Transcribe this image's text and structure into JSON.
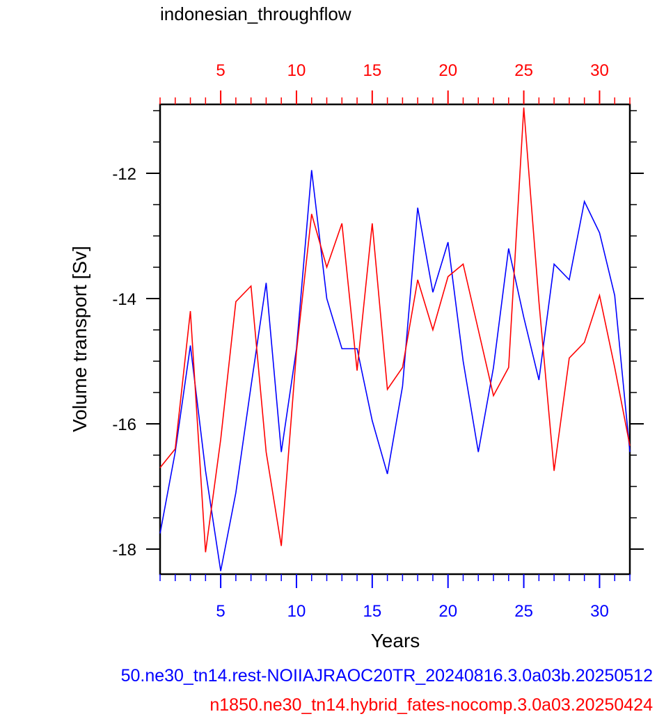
{
  "chart_data": {
    "type": "line",
    "title": "indonesian_throughflow",
    "xlabel": "Years",
    "ylabel": "Volume transport [Sv]",
    "xlim": [
      1,
      32
    ],
    "ylim": [
      -18.4,
      -10.9
    ],
    "x_ticks": [
      5,
      10,
      15,
      20,
      25,
      30
    ],
    "y_ticks": [
      -18,
      -16,
      -14,
      -12
    ],
    "top_axis_color": "#ff0000",
    "bottom_axis_color": "#0000ff",
    "grid": false,
    "x": [
      1,
      2,
      3,
      4,
      5,
      6,
      7,
      8,
      9,
      10,
      11,
      12,
      13,
      14,
      15,
      16,
      17,
      18,
      19,
      20,
      21,
      22,
      23,
      24,
      25,
      26,
      27,
      28,
      29,
      30,
      31,
      32
    ],
    "series": [
      {
        "name": "50.ne30_tn14.rest-NOIIAJRAOC20TR_20240816.3.0a03b.20250512",
        "color": "#0000ff",
        "values": [
          -17.75,
          -16.45,
          -14.75,
          -16.75,
          -18.35,
          -17.1,
          -15.4,
          -13.75,
          -16.45,
          -14.8,
          -11.95,
          -14.0,
          -14.8,
          -14.8,
          -15.95,
          -16.8,
          -15.4,
          -12.55,
          -13.9,
          -13.1,
          -15.0,
          -16.45,
          -15.1,
          -13.2,
          -14.3,
          -15.3,
          -13.45,
          -13.7,
          -12.45,
          -12.95,
          -13.95,
          -16.45
        ]
      },
      {
        "name": "n1850.ne30_tn14.hybrid_fates-nocomp.3.0a03.20250424",
        "color": "#ff0000",
        "values": [
          -16.7,
          -16.4,
          -14.2,
          -18.05,
          -16.25,
          -14.05,
          -13.8,
          -16.45,
          -17.95,
          -14.85,
          -12.65,
          -13.5,
          -12.8,
          -15.15,
          -12.8,
          -15.45,
          -15.1,
          -13.7,
          -14.5,
          -13.65,
          -13.45,
          -14.5,
          -15.55,
          -15.1,
          -10.95,
          -14.05,
          -16.75,
          -14.95,
          -14.7,
          -13.95,
          -15.1,
          -16.35
        ]
      }
    ]
  }
}
